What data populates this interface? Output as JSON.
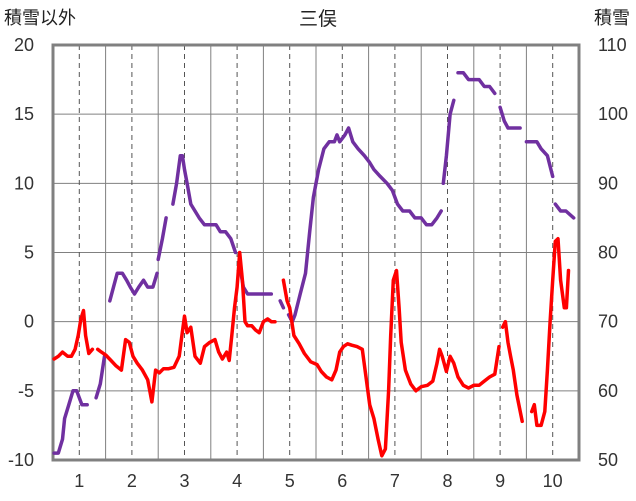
{
  "chart_data": {
    "type": "line",
    "title": "三俣",
    "ylabel_left": "積雪以外",
    "ylabel_right": "積雪",
    "xlabel": "",
    "x_ticks": [
      "1",
      "2",
      "3",
      "4",
      "5",
      "6",
      "7",
      "8",
      "9",
      "10"
    ],
    "xlim": [
      0.5,
      10.5
    ],
    "ylim_left": [
      -10,
      20
    ],
    "y_ticks_left": [
      "20",
      "15",
      "10",
      "5",
      "0",
      "-5",
      "-10"
    ],
    "ylim_right": [
      50,
      110
    ],
    "y_ticks_right": [
      "110",
      "100",
      "90",
      "80",
      "70",
      "60",
      "50"
    ],
    "grid": true,
    "legend": "none",
    "colors": {
      "snow": "#7030a0",
      "other": "#ff0000",
      "frame": "#808080",
      "grid": "#808080"
    },
    "series": [
      {
        "axis": "right",
        "color": "#7030a0",
        "segments": [
          [
            [
              0.52,
              51
            ],
            [
              0.6,
              51
            ],
            [
              0.68,
              53
            ],
            [
              0.72,
              56
            ],
            [
              0.8,
              58
            ],
            [
              0.88,
              60
            ],
            [
              0.95,
              60
            ],
            [
              1.0,
              59
            ],
            [
              1.05,
              58
            ],
            [
              1.15,
              58
            ]
          ],
          [
            [
              1.32,
              59
            ],
            [
              1.4,
              61
            ],
            [
              1.48,
              65
            ]
          ],
          [
            [
              1.58,
              73
            ],
            [
              1.65,
              75
            ],
            [
              1.72,
              77
            ],
            [
              1.82,
              77
            ],
            [
              1.9,
              76
            ],
            [
              1.97,
              75
            ],
            [
              2.05,
              74
            ],
            [
              2.13,
              75
            ],
            [
              2.22,
              76
            ],
            [
              2.3,
              75
            ],
            [
              2.4,
              75
            ],
            [
              2.48,
              77
            ]
          ],
          [
            [
              2.5,
              79
            ],
            [
              2.58,
              82
            ],
            [
              2.65,
              85
            ]
          ],
          [
            [
              2.78,
              87
            ],
            [
              2.85,
              90
            ],
            [
              2.92,
              94
            ],
            [
              2.96,
              94
            ],
            [
              3.0,
              92
            ],
            [
              3.05,
              90
            ],
            [
              3.12,
              87
            ],
            [
              3.2,
              86
            ],
            [
              3.28,
              85
            ],
            [
              3.38,
              84
            ],
            [
              3.48,
              84
            ],
            [
              3.6,
              84
            ],
            [
              3.68,
              83
            ],
            [
              3.78,
              83
            ],
            [
              3.88,
              82
            ],
            [
              3.97,
              80
            ]
          ],
          [
            [
              4.05,
              78
            ],
            [
              4.12,
              75
            ],
            [
              4.2,
              74
            ],
            [
              4.3,
              74
            ],
            [
              4.4,
              74
            ],
            [
              4.5,
              74
            ],
            [
              4.65,
              74
            ]
          ],
          [
            [
              4.82,
              73
            ],
            [
              4.88,
              72
            ]
          ],
          [
            [
              4.98,
              71
            ],
            [
              5.05,
              70
            ],
            [
              5.1,
              71
            ],
            [
              5.2,
              74
            ],
            [
              5.3,
              77
            ],
            [
              5.38,
              83
            ],
            [
              5.45,
              88
            ],
            [
              5.55,
              92
            ],
            [
              5.65,
              95
            ],
            [
              5.75,
              96
            ],
            [
              5.85,
              96
            ],
            [
              5.9,
              97
            ],
            [
              5.95,
              96
            ],
            [
              6.05,
              97
            ],
            [
              6.12,
              98
            ],
            [
              6.2,
              96
            ],
            [
              6.3,
              95
            ],
            [
              6.42,
              94
            ],
            [
              6.52,
              93
            ],
            [
              6.6,
              92
            ],
            [
              6.72,
              91
            ],
            [
              6.85,
              90
            ],
            [
              6.95,
              89
            ],
            [
              7.05,
              87
            ],
            [
              7.15,
              86
            ],
            [
              7.28,
              86
            ],
            [
              7.38,
              85
            ],
            [
              7.5,
              85
            ],
            [
              7.6,
              84
            ],
            [
              7.7,
              84
            ],
            [
              7.8,
              85
            ],
            [
              7.88,
              86
            ]
          ],
          [
            [
              7.92,
              90
            ],
            [
              7.98,
              94
            ],
            [
              8.05,
              100
            ],
            [
              8.12,
              102
            ]
          ],
          [
            [
              8.2,
              106
            ],
            [
              8.3,
              106
            ],
            [
              8.4,
              105
            ],
            [
              8.5,
              105
            ],
            [
              8.6,
              105
            ],
            [
              8.7,
              104
            ],
            [
              8.8,
              104
            ],
            [
              8.9,
              103
            ]
          ],
          [
            [
              9.0,
              101
            ],
            [
              9.08,
              99
            ],
            [
              9.15,
              98
            ],
            [
              9.25,
              98
            ],
            [
              9.38,
              98
            ]
          ],
          [
            [
              9.5,
              96
            ],
            [
              9.6,
              96
            ],
            [
              9.7,
              96
            ],
            [
              9.78,
              95
            ],
            [
              9.9,
              94
            ],
            [
              10.0,
              91
            ]
          ],
          [
            [
              10.05,
              87
            ],
            [
              10.15,
              86
            ],
            [
              10.25,
              86
            ],
            [
              10.4,
              85
            ]
          ]
        ]
      },
      {
        "axis": "left",
        "color": "#ff0000",
        "segments": [
          [
            [
              0.52,
              -2.7
            ],
            [
              0.6,
              -2.5
            ],
            [
              0.68,
              -2.2
            ],
            [
              0.78,
              -2.5
            ],
            [
              0.85,
              -2.5
            ],
            [
              0.92,
              -2
            ],
            [
              0.98,
              -1
            ],
            [
              1.03,
              0.2
            ],
            [
              1.08,
              0.8
            ],
            [
              1.12,
              -1
            ],
            [
              1.18,
              -2.3
            ],
            [
              1.25,
              -2
            ]
          ],
          [
            [
              1.35,
              -2
            ],
            [
              1.42,
              -2.2
            ],
            [
              1.5,
              -2.4
            ],
            [
              1.6,
              -2.8
            ],
            [
              1.7,
              -3.2
            ],
            [
              1.8,
              -3.5
            ],
            [
              1.88,
              -1.3
            ],
            [
              1.95,
              -1.5
            ],
            [
              2.02,
              -2.5
            ],
            [
              2.1,
              -3
            ],
            [
              2.2,
              -3.5
            ],
            [
              2.3,
              -4.2
            ],
            [
              2.38,
              -5.8
            ],
            [
              2.45,
              -3.5
            ],
            [
              2.52,
              -3.7
            ],
            [
              2.6,
              -3.4
            ],
            [
              2.7,
              -3.4
            ],
            [
              2.8,
              -3.3
            ],
            [
              2.9,
              -2.5
            ],
            [
              2.95,
              -1
            ],
            [
              3.0,
              0.4
            ],
            [
              3.05,
              -0.8
            ],
            [
              3.12,
              -0.4
            ],
            [
              3.2,
              -2.5
            ],
            [
              3.3,
              -3
            ],
            [
              3.38,
              -1.8
            ],
            [
              3.48,
              -1.5
            ],
            [
              3.58,
              -1.3
            ],
            [
              3.65,
              -2.2
            ],
            [
              3.72,
              -2.7
            ],
            [
              3.8,
              -2.2
            ],
            [
              3.85,
              -2.8
            ],
            [
              3.9,
              -1
            ],
            [
              3.95,
              1
            ],
            [
              4.0,
              2.5
            ],
            [
              4.05,
              5
            ],
            [
              4.1,
              3
            ],
            [
              4.15,
              0
            ],
            [
              4.2,
              -0.3
            ],
            [
              4.28,
              -0.3
            ],
            [
              4.35,
              -0.6
            ],
            [
              4.42,
              -0.8
            ],
            [
              4.5,
              0
            ],
            [
              4.58,
              0.2
            ],
            [
              4.65,
              0
            ],
            [
              4.72,
              0
            ]
          ],
          [
            [
              4.88,
              3
            ],
            [
              4.95,
              1.5
            ],
            [
              5.0,
              1
            ],
            [
              5.08,
              -1
            ],
            [
              5.18,
              -1.6
            ],
            [
              5.28,
              -2.3
            ],
            [
              5.4,
              -2.9
            ],
            [
              5.52,
              -3.1
            ],
            [
              5.6,
              -3.6
            ],
            [
              5.7,
              -4
            ],
            [
              5.8,
              -4.2
            ],
            [
              5.88,
              -3.5
            ],
            [
              5.95,
              -2.2
            ],
            [
              6.02,
              -1.8
            ],
            [
              6.1,
              -1.6
            ],
            [
              6.18,
              -1.7
            ],
            [
              6.28,
              -1.8
            ],
            [
              6.38,
              -2
            ],
            [
              6.45,
              -4
            ],
            [
              6.52,
              -6
            ],
            [
              6.6,
              -7
            ],
            [
              6.68,
              -8.5
            ],
            [
              6.75,
              -9.7
            ],
            [
              6.82,
              -9.2
            ],
            [
              6.88,
              -5
            ],
            [
              6.92,
              -1
            ],
            [
              6.97,
              3
            ],
            [
              7.03,
              3.7
            ],
            [
              7.08,
              1
            ],
            [
              7.12,
              -1.5
            ],
            [
              7.2,
              -3.5
            ],
            [
              7.3,
              -4.5
            ],
            [
              7.4,
              -5
            ],
            [
              7.5,
              -4.7
            ],
            [
              7.62,
              -4.6
            ],
            [
              7.72,
              -4.3
            ],
            [
              7.8,
              -3
            ],
            [
              7.85,
              -2
            ],
            [
              7.9,
              -2.5
            ],
            [
              7.98,
              -3.6
            ],
            [
              8.05,
              -2.5
            ],
            [
              8.12,
              -3
            ],
            [
              8.2,
              -4
            ],
            [
              8.3,
              -4.6
            ],
            [
              8.4,
              -4.8
            ],
            [
              8.5,
              -4.6
            ],
            [
              8.6,
              -4.6
            ],
            [
              8.7,
              -4.3
            ],
            [
              8.8,
              -4
            ],
            [
              8.9,
              -3.8
            ],
            [
              8.98,
              -1.8
            ]
          ],
          [
            [
              9.05,
              -0.4
            ],
            [
              9.1,
              0
            ],
            [
              9.15,
              -1.5
            ],
            [
              9.2,
              -2.5
            ],
            [
              9.25,
              -3.5
            ],
            [
              9.32,
              -5.3
            ],
            [
              9.42,
              -7.2
            ]
          ],
          [
            [
              9.6,
              -6.5
            ],
            [
              9.65,
              -6
            ],
            [
              9.7,
              -7.5
            ],
            [
              9.78,
              -7.5
            ],
            [
              9.85,
              -6.5
            ],
            [
              9.9,
              -3.5
            ],
            [
              9.95,
              0
            ],
            [
              10.0,
              3
            ],
            [
              10.05,
              5.8
            ],
            [
              10.1,
              6
            ],
            [
              10.15,
              3
            ],
            [
              10.22,
              1
            ],
            [
              10.26,
              1
            ],
            [
              10.3,
              3.7
            ]
          ]
        ]
      }
    ]
  }
}
